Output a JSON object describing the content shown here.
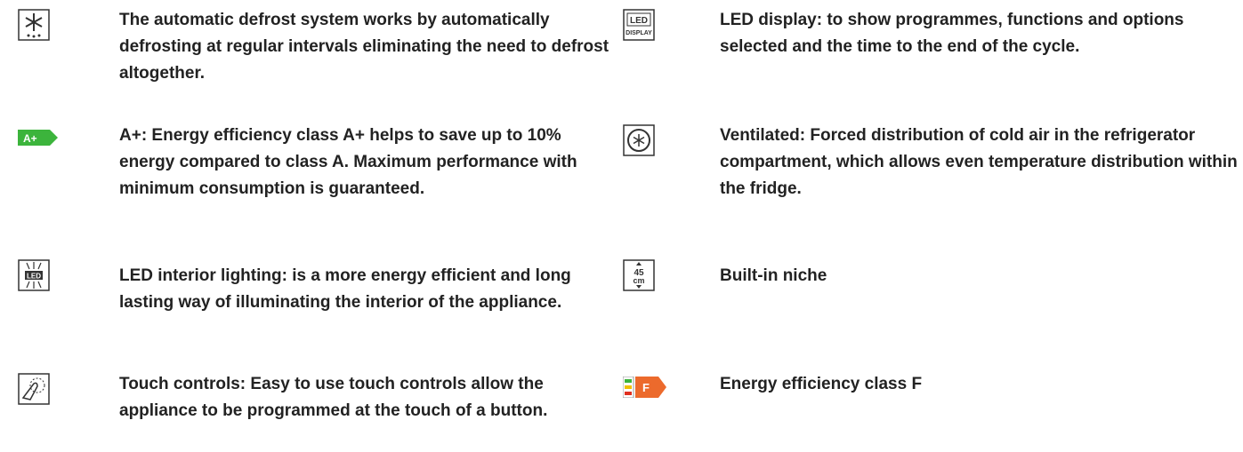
{
  "features": [
    {
      "text": "The automatic defrost system works by automatically defrosting at regular intervals eliminating the need to defrost altogether."
    },
    {
      "text": "A+: Energy efficiency class A+ helps to save up to 10% energy compared to class A. Maximum performance with minimum consumption is guaranteed.",
      "icon_text": "A+"
    },
    {
      "text": "LED interior lighting: is a more energy efficient and long lasting way of illuminating the interior of the appliance.",
      "icon_text": "LED"
    },
    {
      "text": "Touch controls: Easy to use touch controls allow the appliance to be programmed at the touch of a button."
    },
    {
      "text": "LED display: to show programmes, functions and options selected and the time to the end of the cycle.",
      "icon_text": [
        "LED",
        "DISPLAY"
      ]
    },
    {
      "text": "Ventilated: Forced distribution of cold air in the refrigerator compartment, which allows even temperature distribution within the fridge."
    },
    {
      "text": "Built-in niche",
      "icon_text": [
        "45",
        "cm"
      ]
    },
    {
      "text": "Energy efficiency class F",
      "icon_text": "F"
    }
  ]
}
